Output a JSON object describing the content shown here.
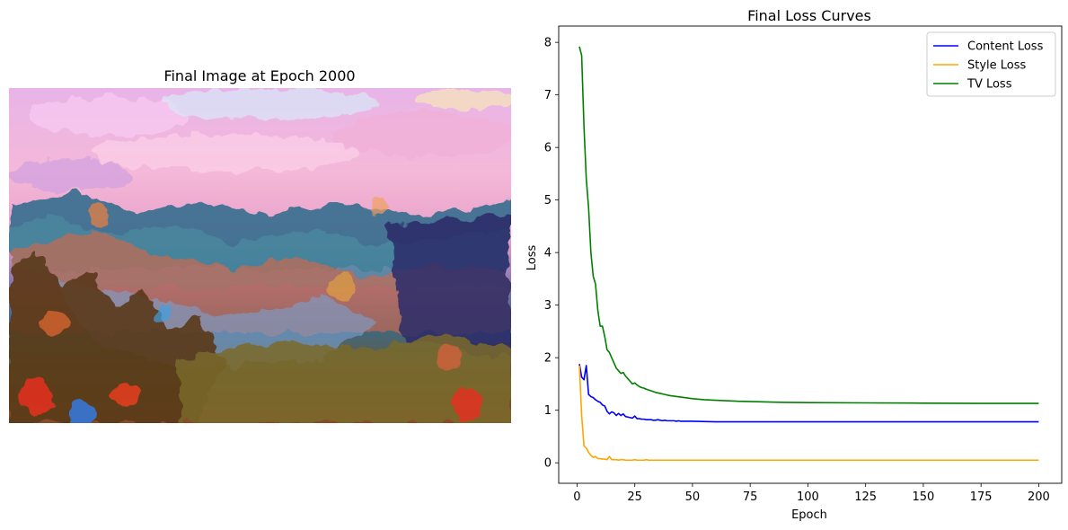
{
  "figure": {
    "left_panel": {
      "title": "Final Image at Epoch 2000"
    },
    "right_panel": {
      "chart_data": {
        "type": "line",
        "title": "Final Loss Curves",
        "xlabel": "Epoch",
        "ylabel": "Loss",
        "xlim": [
          -7.95,
          209.95
        ],
        "ylim": [
          -0.39,
          8.31
        ],
        "xticks": [
          0,
          25,
          50,
          75,
          100,
          125,
          150,
          175,
          200
        ],
        "yticks": [
          0,
          1,
          2,
          3,
          4,
          5,
          6,
          7,
          8
        ],
        "grid": false,
        "legend_position": "top-right",
        "series": [
          {
            "name": "Content Loss",
            "color": "#0000ff",
            "x": [
              1,
              2,
              3,
              4,
              5,
              6,
              7,
              8,
              9,
              10,
              11,
              12,
              13,
              14,
              15,
              16,
              17,
              18,
              19,
              20,
              21,
              22,
              23,
              24,
              25,
              26,
              27,
              28,
              29,
              30,
              31,
              32,
              33,
              34,
              35,
              36,
              37,
              38,
              39,
              40,
              41,
              42,
              43,
              44,
              45,
              46,
              47,
              48,
              49,
              50,
              60,
              75,
              100,
              125,
              150,
              175,
              200
            ],
            "values": [
              1.88,
              1.63,
              1.58,
              1.85,
              1.3,
              1.26,
              1.24,
              1.2,
              1.17,
              1.15,
              1.1,
              1.08,
              0.98,
              0.93,
              0.97,
              0.95,
              0.9,
              0.94,
              0.9,
              0.93,
              0.88,
              0.87,
              0.86,
              0.85,
              0.89,
              0.84,
              0.84,
              0.83,
              0.83,
              0.82,
              0.82,
              0.82,
              0.81,
              0.81,
              0.82,
              0.81,
              0.8,
              0.81,
              0.8,
              0.8,
              0.8,
              0.8,
              0.79,
              0.8,
              0.79,
              0.79,
              0.79,
              0.79,
              0.79,
              0.79,
              0.78,
              0.78,
              0.78,
              0.78,
              0.78,
              0.78,
              0.78
            ]
          },
          {
            "name": "Style Loss",
            "color": "#ffa500",
            "x": [
              1,
              2,
              3,
              4,
              5,
              6,
              7,
              8,
              9,
              10,
              11,
              12,
              13,
              14,
              15,
              16,
              17,
              18,
              19,
              20,
              21,
              22,
              23,
              24,
              25,
              26,
              27,
              28,
              29,
              30,
              31,
              32,
              33,
              34,
              35,
              40,
              50,
              75,
              100,
              125,
              150,
              175,
              200
            ],
            "values": [
              1.85,
              0.9,
              0.32,
              0.28,
              0.2,
              0.14,
              0.1,
              0.12,
              0.08,
              0.08,
              0.07,
              0.07,
              0.06,
              0.12,
              0.06,
              0.06,
              0.06,
              0.05,
              0.06,
              0.06,
              0.05,
              0.05,
              0.05,
              0.05,
              0.06,
              0.05,
              0.05,
              0.05,
              0.05,
              0.06,
              0.05,
              0.05,
              0.05,
              0.05,
              0.05,
              0.05,
              0.05,
              0.05,
              0.05,
              0.05,
              0.05,
              0.05,
              0.05
            ]
          },
          {
            "name": "TV Loss",
            "color": "#008000",
            "x": [
              1,
              2,
              3,
              4,
              5,
              6,
              7,
              8,
              9,
              10,
              11,
              12,
              13,
              14,
              15,
              16,
              17,
              18,
              19,
              20,
              21,
              22,
              23,
              24,
              25,
              26,
              27,
              28,
              29,
              30,
              32,
              34,
              36,
              38,
              40,
              45,
              50,
              55,
              60,
              70,
              80,
              90,
              100,
              125,
              150,
              175,
              200
            ],
            "values": [
              7.92,
              7.75,
              6.4,
              5.4,
              4.85,
              4.0,
              3.55,
              3.4,
              2.9,
              2.6,
              2.6,
              2.4,
              2.15,
              2.1,
              2.0,
              1.9,
              1.8,
              1.75,
              1.7,
              1.72,
              1.65,
              1.6,
              1.55,
              1.5,
              1.52,
              1.48,
              1.45,
              1.43,
              1.42,
              1.4,
              1.37,
              1.34,
              1.32,
              1.3,
              1.28,
              1.25,
              1.22,
              1.2,
              1.19,
              1.17,
              1.16,
              1.15,
              1.145,
              1.14,
              1.135,
              1.13,
              1.13
            ]
          }
        ]
      }
    }
  }
}
